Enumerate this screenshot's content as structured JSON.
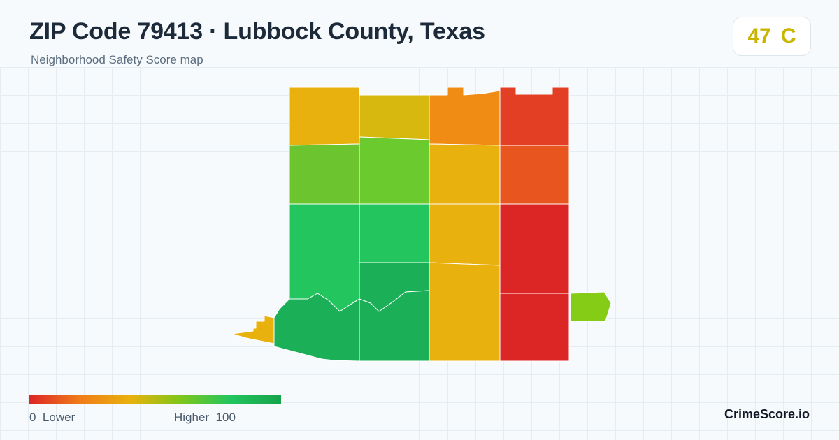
{
  "header": {
    "title": "ZIP Code 79413 · Lubbock County, Texas",
    "subtitle": "Neighborhood Safety Score map"
  },
  "score": {
    "value": "47",
    "grade": "C",
    "color": "#c9b400"
  },
  "legend": {
    "low_value": "0",
    "low_label": "Lower",
    "high_label": "Higher",
    "high_value": "100",
    "colors": [
      "#dc2626",
      "#f07c18",
      "#e9b10d",
      "#7fc61a",
      "#22c55e",
      "#16a34a"
    ]
  },
  "brand": "CrimeScore.io",
  "map_regions": [
    {
      "name": "region-r1c1",
      "color": "#e9b10d"
    },
    {
      "name": "region-r1c2",
      "color": "#d6b80f"
    },
    {
      "name": "region-r1c3",
      "color": "#f08c14"
    },
    {
      "name": "region-r1c4",
      "color": "#e23f24"
    },
    {
      "name": "region-r2c1",
      "color": "#6cc52e"
    },
    {
      "name": "region-r2c2",
      "color": "#6bca2d"
    },
    {
      "name": "region-r2c3",
      "color": "#e9b10d"
    },
    {
      "name": "region-r2c4",
      "color": "#e8551f"
    },
    {
      "name": "region-r3c1",
      "color": "#22c55e"
    },
    {
      "name": "region-r3c2",
      "color": "#22c55e"
    },
    {
      "name": "region-r3c3",
      "color": "#e9b10d"
    },
    {
      "name": "region-r3c4",
      "color": "#dc2626"
    },
    {
      "name": "region-r4c2",
      "color": "#1bb057"
    },
    {
      "name": "region-r4c3",
      "color": "#e9b10d"
    },
    {
      "name": "region-r4c4",
      "color": "#dc2626"
    },
    {
      "name": "region-r5c1",
      "color": "#1bb057"
    },
    {
      "name": "region-r5c2",
      "color": "#1bb057"
    },
    {
      "name": "region-west-spur",
      "color": "#e9b10d"
    },
    {
      "name": "region-east-tab",
      "color": "#84cc16"
    }
  ]
}
